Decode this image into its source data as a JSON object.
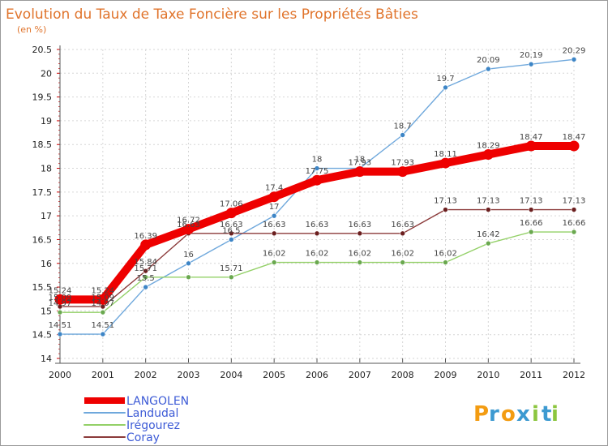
{
  "chart_data": {
    "type": "line",
    "title": "Evolution du Taux de Taxe Foncière sur les Propriétés Bâties",
    "subtitle": "(en %)",
    "x": [
      "2000",
      "2001",
      "2002",
      "2003",
      "2004",
      "2005",
      "2006",
      "2007",
      "2008",
      "2009",
      "2010",
      "2011",
      "2012"
    ],
    "ylim": [
      14,
      20.5
    ],
    "yticks": [
      "14",
      "14.5",
      "15",
      "15.5",
      "16",
      "16.5",
      "17",
      "17.5",
      "18",
      "18.5",
      "19",
      "19.5",
      "20",
      "20.5"
    ],
    "grid": true,
    "legend_position": "bottom-left",
    "series": [
      {
        "name": "Landudal",
        "color": "#6fa8dc",
        "marker": "#3d85c6",
        "values": [
          14.51,
          14.51,
          15.5,
          16,
          16.5,
          17,
          18,
          18,
          18.7,
          19.7,
          20.09,
          20.19,
          20.29
        ],
        "labels": [
          "14.51",
          "14.51",
          "15.5",
          "16",
          "16.5",
          "17",
          "18",
          "18",
          "18.7",
          "19.7",
          "20.09",
          "20.19",
          "20.29"
        ]
      },
      {
        "name": "Irégourez",
        "color": "#93d067",
        "marker": "#6aa84f",
        "values": [
          14.97,
          14.97,
          15.71,
          15.71,
          15.71,
          16.02,
          16.02,
          16.02,
          16.02,
          16.02,
          16.42,
          16.66,
          16.66
        ],
        "labels": [
          "14.97",
          "14.97",
          "15.71",
          "",
          "15.71",
          "16.02",
          "16.02",
          "16.02",
          "16.02",
          "16.02",
          "16.42",
          "16.66",
          "16.66"
        ]
      },
      {
        "name": "Coray",
        "color": "#8b3a3a",
        "marker": "#6b1f1f",
        "values": [
          15.09,
          15.09,
          15.84,
          16.63,
          16.63,
          16.63,
          16.63,
          16.63,
          16.63,
          17.13,
          17.13,
          17.13,
          17.13
        ],
        "labels": [
          "15.09",
          "15.09",
          "15.84",
          "16.63",
          "16.63",
          "16.63",
          "16.63",
          "16.63",
          "16.63",
          "17.13",
          "17.13",
          "17.13",
          "17.13"
        ]
      },
      {
        "name": "LANGOLEN",
        "color": "#ee0000",
        "marker": "#ee0000",
        "values": [
          15.24,
          15.24,
          16.39,
          16.72,
          17.06,
          17.4,
          17.75,
          17.93,
          17.93,
          18.11,
          18.29,
          18.47,
          18.47
        ],
        "labels": [
          "15.24",
          "15.24",
          "16.39",
          "16.72",
          "17.06",
          "17.4",
          "17.75",
          "17.93",
          "17.93",
          "18.11",
          "18.29",
          "18.47",
          "18.47"
        ]
      }
    ],
    "legend_order": [
      "LANGOLEN",
      "Landudal",
      "Irégourez",
      "Coray"
    ]
  },
  "logo": {
    "text": "Proxiti",
    "letters": [
      "P",
      "r",
      "o",
      "x",
      "i",
      "t",
      "i"
    ],
    "colors": [
      "#f39c12",
      "#3d9ad1",
      "#f39c12",
      "#3d9ad1",
      "#8cc63f",
      "#3d9ad1",
      "#8cc63f"
    ]
  }
}
